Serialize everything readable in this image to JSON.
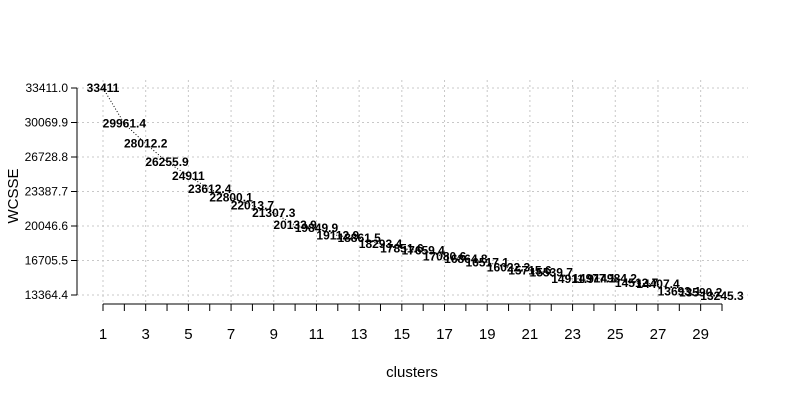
{
  "chart_data": {
    "type": "line",
    "title": "",
    "xlabel": "clusters",
    "ylabel": "WCSSE",
    "grid": true,
    "legend": "none",
    "xlim": [
      1,
      30
    ],
    "ylim": [
      13364.4,
      33411.0
    ],
    "x_ticks": [
      1,
      3,
      5,
      7,
      9,
      11,
      13,
      15,
      17,
      19,
      21,
      23,
      25,
      27,
      29
    ],
    "y_ticks": [
      13364.4,
      16705.5,
      20046.6,
      23387.7,
      26728.8,
      30069.9,
      33411.0
    ],
    "y_tick_labels": [
      "13364.4",
      "16705.5",
      "20046.6",
      "23387.7",
      "26728.8",
      "30069.9",
      "33411.0"
    ],
    "x": [
      1,
      2,
      3,
      4,
      5,
      6,
      7,
      8,
      9,
      10,
      11,
      12,
      13,
      14,
      15,
      16,
      17,
      18,
      19,
      20,
      21,
      22,
      23,
      24,
      25,
      26,
      27,
      28,
      29,
      30
    ],
    "values": [
      33411,
      29961.4,
      28012.2,
      26255.9,
      24911,
      23612.4,
      22800.1,
      22013.7,
      21307.3,
      20133.9,
      19849.9,
      19112.9,
      18861.5,
      18293.4,
      17851.6,
      17659.4,
      17080.6,
      16864.8,
      16517.1,
      16022.3,
      15715.6,
      15539.7,
      14911.9,
      14977.1,
      14984.2,
      14512.7,
      14407.4,
      13693.1,
      13590.2,
      13245.3
    ],
    "data_labels": [
      "33411",
      "29961.4",
      "28012.2",
      "26255.9",
      "24911",
      "23612.4",
      "22800.1",
      "22013.7",
      "21307.3",
      "20133.9",
      "19849.9",
      "19112.9",
      "18861.5",
      "18293.4",
      "17851.6",
      "17659.4",
      "17080.6",
      "16864.8",
      "16517.1",
      "16022.3",
      "15715.6",
      "15539.7",
      "14911.9",
      "14977.1",
      "14984.2",
      "14512.7",
      "14407.4",
      "13693.1",
      "13590.2",
      "13245.3"
    ]
  }
}
